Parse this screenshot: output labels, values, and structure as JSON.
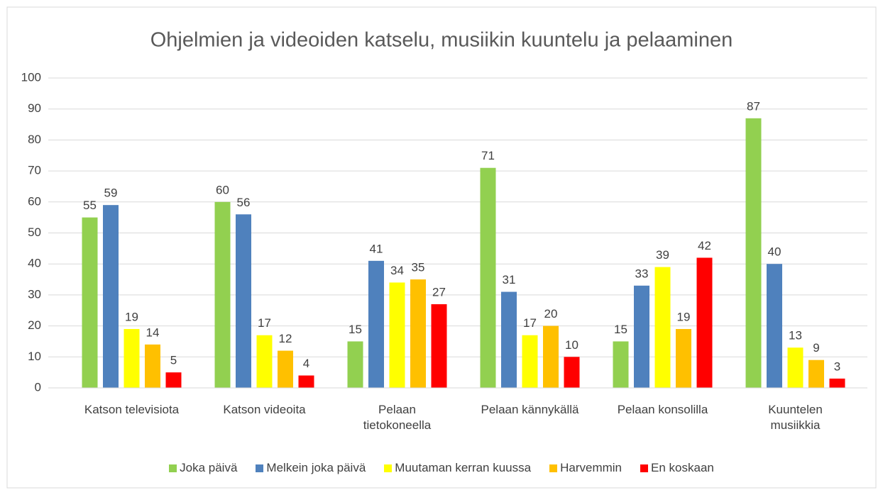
{
  "chart_data": {
    "type": "bar",
    "title": "Ohjelmien ja videoiden katselu, musiikin kuuntelu ja pelaaminen",
    "categories": [
      "Katson televisiota",
      "Katson videoita",
      "Pelaan\ntietokoneella",
      "Pelaan kännykällä",
      "Pelaan konsolilla",
      "Kuuntelen\nmusiikkia"
    ],
    "series": [
      {
        "name": "Joka päivä",
        "color": "#92d050",
        "values": [
          55,
          60,
          15,
          71,
          15,
          87
        ]
      },
      {
        "name": "Melkein joka päivä",
        "color": "#4f81bd",
        "values": [
          59,
          56,
          41,
          31,
          33,
          40
        ]
      },
      {
        "name": "Muutaman kerran kuussa",
        "color": "#ffff00",
        "values": [
          19,
          17,
          34,
          17,
          39,
          13
        ]
      },
      {
        "name": "Harvemmin",
        "color": "#ffc000",
        "values": [
          14,
          12,
          35,
          20,
          19,
          9
        ]
      },
      {
        "name": "En koskaan",
        "color": "#ff0000",
        "values": [
          5,
          4,
          27,
          10,
          42,
          3
        ]
      }
    ],
    "ylim": [
      0,
      100
    ],
    "yticks": [
      0,
      10,
      20,
      30,
      40,
      50,
      60,
      70,
      80,
      90,
      100
    ],
    "grid": true,
    "legend": "bottom"
  }
}
